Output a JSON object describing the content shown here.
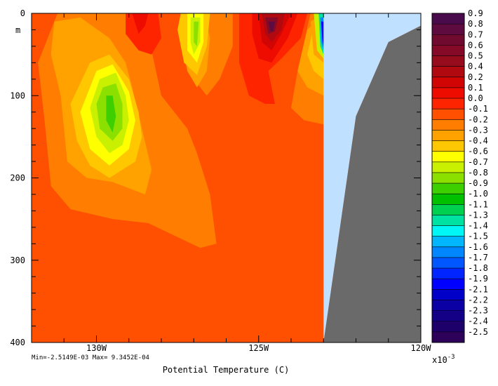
{
  "chart_data": {
    "type": "heatmap",
    "xlabel": "Potential Temperature (C)",
    "ylabel": "m",
    "stats": "Min=-2.5149E-03  Max= 9.3452E-04",
    "scale_label": "x10",
    "scale_exponent": "-3",
    "x_ticks": [
      "130W",
      "125W",
      "120W"
    ],
    "y_ticks": [
      "0",
      "100",
      "200",
      "300",
      "400"
    ],
    "xlim": [
      -132,
      -120
    ],
    "ylim": [
      0,
      400
    ],
    "ocean_boundary_lon": -123,
    "colorbar": {
      "labels": [
        "0.9",
        "0.8",
        "0.7",
        "0.6",
        "0.5",
        "0.4",
        "0.2",
        "0.1",
        "0.0",
        "-0.1",
        "-0.2",
        "-0.3",
        "-0.4",
        "-0.6",
        "-0.7",
        "-0.8",
        "-0.9",
        "-1.0",
        "-1.1",
        "-1.3",
        "-1.4",
        "-1.5",
        "-1.6",
        "-1.7",
        "-1.8",
        "-1.9",
        "-2.1",
        "-2.2",
        "-2.3",
        "-2.4",
        "-2.5"
      ],
      "colors": [
        "#4a0b4d",
        "#5e0c3f",
        "#700a2f",
        "#850a28",
        "#970c1c",
        "#b00910",
        "#d20505",
        "#ee0c00",
        "#ff2400",
        "#ff4f00",
        "#ff7d00",
        "#ffa200",
        "#ffc700",
        "#ffff00",
        "#c9f000",
        "#8ce000",
        "#3dcf00",
        "#00c000",
        "#00d050",
        "#00e2a2",
        "#00f7f5",
        "#00b6ff",
        "#0086ff",
        "#0057ff",
        "#0025ff",
        "#0000ff",
        "#0000c8",
        "#0a00a4",
        "#140087",
        "#1e006b",
        "#2d005a"
      ]
    },
    "background_value": -0.1,
    "regions": [
      {
        "level": -0.2,
        "pts": [
          [
            -131.2,
            0
          ],
          [
            -128.6,
            0
          ],
          [
            -128.3,
            45
          ],
          [
            -128.0,
            100
          ],
          [
            -127.2,
            140
          ],
          [
            -126.9,
            170
          ],
          [
            -126.5,
            220
          ],
          [
            -126.3,
            280
          ],
          [
            -126.8,
            285
          ],
          [
            -128.4,
            255
          ],
          [
            -129.5,
            250
          ],
          [
            -130.8,
            238
          ],
          [
            -131.4,
            210
          ],
          [
            -131.6,
            130
          ],
          [
            -131.8,
            60
          ]
        ]
      },
      {
        "level": -0.2,
        "pts": [
          [
            -127.1,
            0
          ],
          [
            -125.8,
            0
          ],
          [
            -125.8,
            40
          ],
          [
            -126.2,
            80
          ],
          [
            -126.6,
            100
          ],
          [
            -127.2,
            70
          ],
          [
            -127.5,
            20
          ]
        ]
      },
      {
        "level": -0.2,
        "pts": [
          [
            -123.4,
            0
          ],
          [
            -123.0,
            0
          ],
          [
            -123.0,
            135
          ],
          [
            -123.6,
            130
          ],
          [
            -124.0,
            115
          ],
          [
            -123.8,
            70
          ]
        ]
      },
      {
        "level": -0.3,
        "pts": [
          [
            -131.3,
            10
          ],
          [
            -130.5,
            5
          ],
          [
            -129.6,
            30
          ],
          [
            -129.1,
            60
          ],
          [
            -128.9,
            90
          ],
          [
            -128.6,
            140
          ],
          [
            -128.3,
            190
          ],
          [
            -128.5,
            220
          ],
          [
            -129.5,
            205
          ],
          [
            -130.3,
            200
          ],
          [
            -130.9,
            180
          ],
          [
            -131.1,
            100
          ],
          [
            -131.4,
            50
          ]
        ]
      },
      {
        "level": -0.3,
        "pts": [
          [
            -127.2,
            0
          ],
          [
            -126.7,
            0
          ],
          [
            -126.5,
            30
          ],
          [
            -126.6,
            70
          ],
          [
            -126.9,
            90
          ],
          [
            -127.2,
            70
          ],
          [
            -127.3,
            25
          ]
        ]
      },
      {
        "level": -0.3,
        "pts": [
          [
            -123.5,
            20
          ],
          [
            -123.0,
            0
          ],
          [
            -123.0,
            100
          ],
          [
            -123.5,
            90
          ],
          [
            -123.8,
            70
          ]
        ]
      },
      {
        "level": -0.4,
        "pts": [
          [
            -130.2,
            60
          ],
          [
            -129.6,
            50
          ],
          [
            -129.0,
            80
          ],
          [
            -128.7,
            120
          ],
          [
            -128.6,
            150
          ],
          [
            -128.8,
            180
          ],
          [
            -129.6,
            200
          ],
          [
            -130.2,
            185
          ],
          [
            -130.6,
            155
          ],
          [
            -130.8,
            110
          ]
        ]
      },
      {
        "level": -0.4,
        "pts": [
          [
            -127.4,
            0
          ],
          [
            -126.5,
            0
          ],
          [
            -126.6,
            40
          ],
          [
            -126.9,
            75
          ],
          [
            -127.3,
            60
          ],
          [
            -127.5,
            20
          ]
        ]
      },
      {
        "level": -0.4,
        "pts": [
          [
            -123.3,
            15
          ],
          [
            -123.0,
            5
          ],
          [
            -123.0,
            80
          ],
          [
            -123.3,
            70
          ],
          [
            -123.5,
            50
          ]
        ]
      },
      {
        "level": -0.6,
        "pts": [
          [
            -130.0,
            70
          ],
          [
            -129.5,
            62
          ],
          [
            -129.0,
            95
          ],
          [
            -128.8,
            130
          ],
          [
            -129.0,
            165
          ],
          [
            -129.6,
            185
          ],
          [
            -130.2,
            165
          ],
          [
            -130.5,
            120
          ]
        ]
      },
      {
        "level": -0.6,
        "pts": [
          [
            -127.2,
            0
          ],
          [
            -126.7,
            0
          ],
          [
            -126.7,
            35
          ],
          [
            -126.9,
            60
          ],
          [
            -127.2,
            45
          ]
        ]
      },
      {
        "level": -0.7,
        "pts": [
          [
            -129.9,
            80
          ],
          [
            -129.4,
            72
          ],
          [
            -129.1,
            100
          ],
          [
            -129.0,
            130
          ],
          [
            -129.2,
            160
          ],
          [
            -129.6,
            170
          ],
          [
            -130.0,
            150
          ],
          [
            -130.2,
            115
          ]
        ]
      },
      {
        "level": -0.7,
        "pts": [
          [
            -127.1,
            5
          ],
          [
            -126.8,
            5
          ],
          [
            -126.8,
            35
          ],
          [
            -127.0,
            50
          ],
          [
            -127.1,
            35
          ]
        ]
      },
      {
        "level": -0.8,
        "pts": [
          [
            -129.8,
            90
          ],
          [
            -129.4,
            85
          ],
          [
            -129.2,
            110
          ],
          [
            -129.2,
            140
          ],
          [
            -129.5,
            155
          ],
          [
            -129.9,
            140
          ],
          [
            -130.0,
            110
          ]
        ]
      },
      {
        "level": -0.8,
        "pts": [
          [
            -127.0,
            10
          ],
          [
            -126.85,
            10
          ],
          [
            -126.9,
            40
          ],
          [
            -127.0,
            35
          ]
        ]
      },
      {
        "level": -0.9,
        "pts": [
          [
            -129.7,
            100
          ],
          [
            -129.5,
            100
          ],
          [
            -129.4,
            125
          ],
          [
            -129.5,
            145
          ],
          [
            -129.7,
            130
          ]
        ]
      },
      {
        "level": -0.3,
        "pts": [
          [
            -123.4,
            10
          ],
          [
            -123.0,
            0
          ],
          [
            -123.0,
            60
          ],
          [
            -123.3,
            50
          ]
        ]
      },
      {
        "level": -0.7,
        "pts": [
          [
            -123.3,
            0
          ],
          [
            -123.0,
            0
          ],
          [
            -123.0,
            55
          ],
          [
            -123.2,
            45
          ]
        ]
      },
      {
        "level": -1.3,
        "pts": [
          [
            -123.15,
            0
          ],
          [
            -123.0,
            0
          ],
          [
            -123.0,
            50
          ],
          [
            -123.1,
            40
          ]
        ]
      },
      {
        "level": -1.6,
        "pts": [
          [
            -123.1,
            5
          ],
          [
            -123.0,
            5
          ],
          [
            -123.0,
            45
          ],
          [
            -123.07,
            35
          ]
        ]
      },
      {
        "level": -2.0,
        "pts": [
          [
            -123.07,
            10
          ],
          [
            -123.0,
            10
          ],
          [
            -123.0,
            40
          ],
          [
            -123.04,
            30
          ]
        ]
      },
      {
        "level": 0.0,
        "pts": [
          [
            -129.1,
            0
          ],
          [
            -128.1,
            0
          ],
          [
            -128.0,
            30
          ],
          [
            -128.3,
            50
          ],
          [
            -128.7,
            45
          ],
          [
            -129.1,
            25
          ]
        ]
      },
      {
        "level": 0.0,
        "pts": [
          [
            -125.6,
            0
          ],
          [
            -123.5,
            0
          ],
          [
            -123.7,
            30
          ],
          [
            -124.3,
            55
          ],
          [
            -124.7,
            70
          ],
          [
            -124.5,
            110
          ],
          [
            -124.8,
            110
          ],
          [
            -125.3,
            100
          ],
          [
            -125.6,
            60
          ]
        ]
      },
      {
        "level": 0.1,
        "pts": [
          [
            -128.9,
            0
          ],
          [
            -128.4,
            0
          ],
          [
            -128.5,
            15
          ],
          [
            -128.7,
            25
          ]
        ]
      },
      {
        "level": 0.1,
        "pts": [
          [
            -125.2,
            0
          ],
          [
            -123.8,
            0
          ],
          [
            -124.1,
            30
          ],
          [
            -124.6,
            60
          ],
          [
            -125.0,
            55
          ],
          [
            -125.2,
            25
          ]
        ]
      },
      {
        "level": 0.2,
        "pts": [
          [
            -125.0,
            0
          ],
          [
            -124.0,
            0
          ],
          [
            -124.3,
            25
          ],
          [
            -124.6,
            45
          ],
          [
            -124.9,
            35
          ]
        ]
      },
      {
        "level": 0.4,
        "pts": [
          [
            -124.9,
            0
          ],
          [
            -124.2,
            0
          ],
          [
            -124.3,
            20
          ],
          [
            -124.6,
            35
          ],
          [
            -124.8,
            25
          ]
        ]
      },
      {
        "level": 0.6,
        "pts": [
          [
            -124.8,
            5
          ],
          [
            -124.4,
            5
          ],
          [
            -124.5,
            22
          ],
          [
            -124.7,
            25
          ]
        ]
      },
      {
        "level": 0.8,
        "pts": [
          [
            -124.7,
            10
          ],
          [
            -124.5,
            10
          ],
          [
            -124.55,
            22
          ],
          [
            -124.65,
            22
          ]
        ]
      }
    ],
    "land": [
      [
        -123.0,
        400
      ],
      [
        -122.0,
        125
      ],
      [
        -121.0,
        35
      ],
      [
        -120.0,
        15
      ],
      [
        -120.0,
        400
      ]
    ],
    "shelf_water": [
      [
        -123.0,
        0
      ],
      [
        -120.0,
        0
      ],
      [
        -120.0,
        15
      ],
      [
        -121.0,
        35
      ],
      [
        -122.0,
        125
      ],
      [
        -123.0,
        400
      ]
    ]
  }
}
